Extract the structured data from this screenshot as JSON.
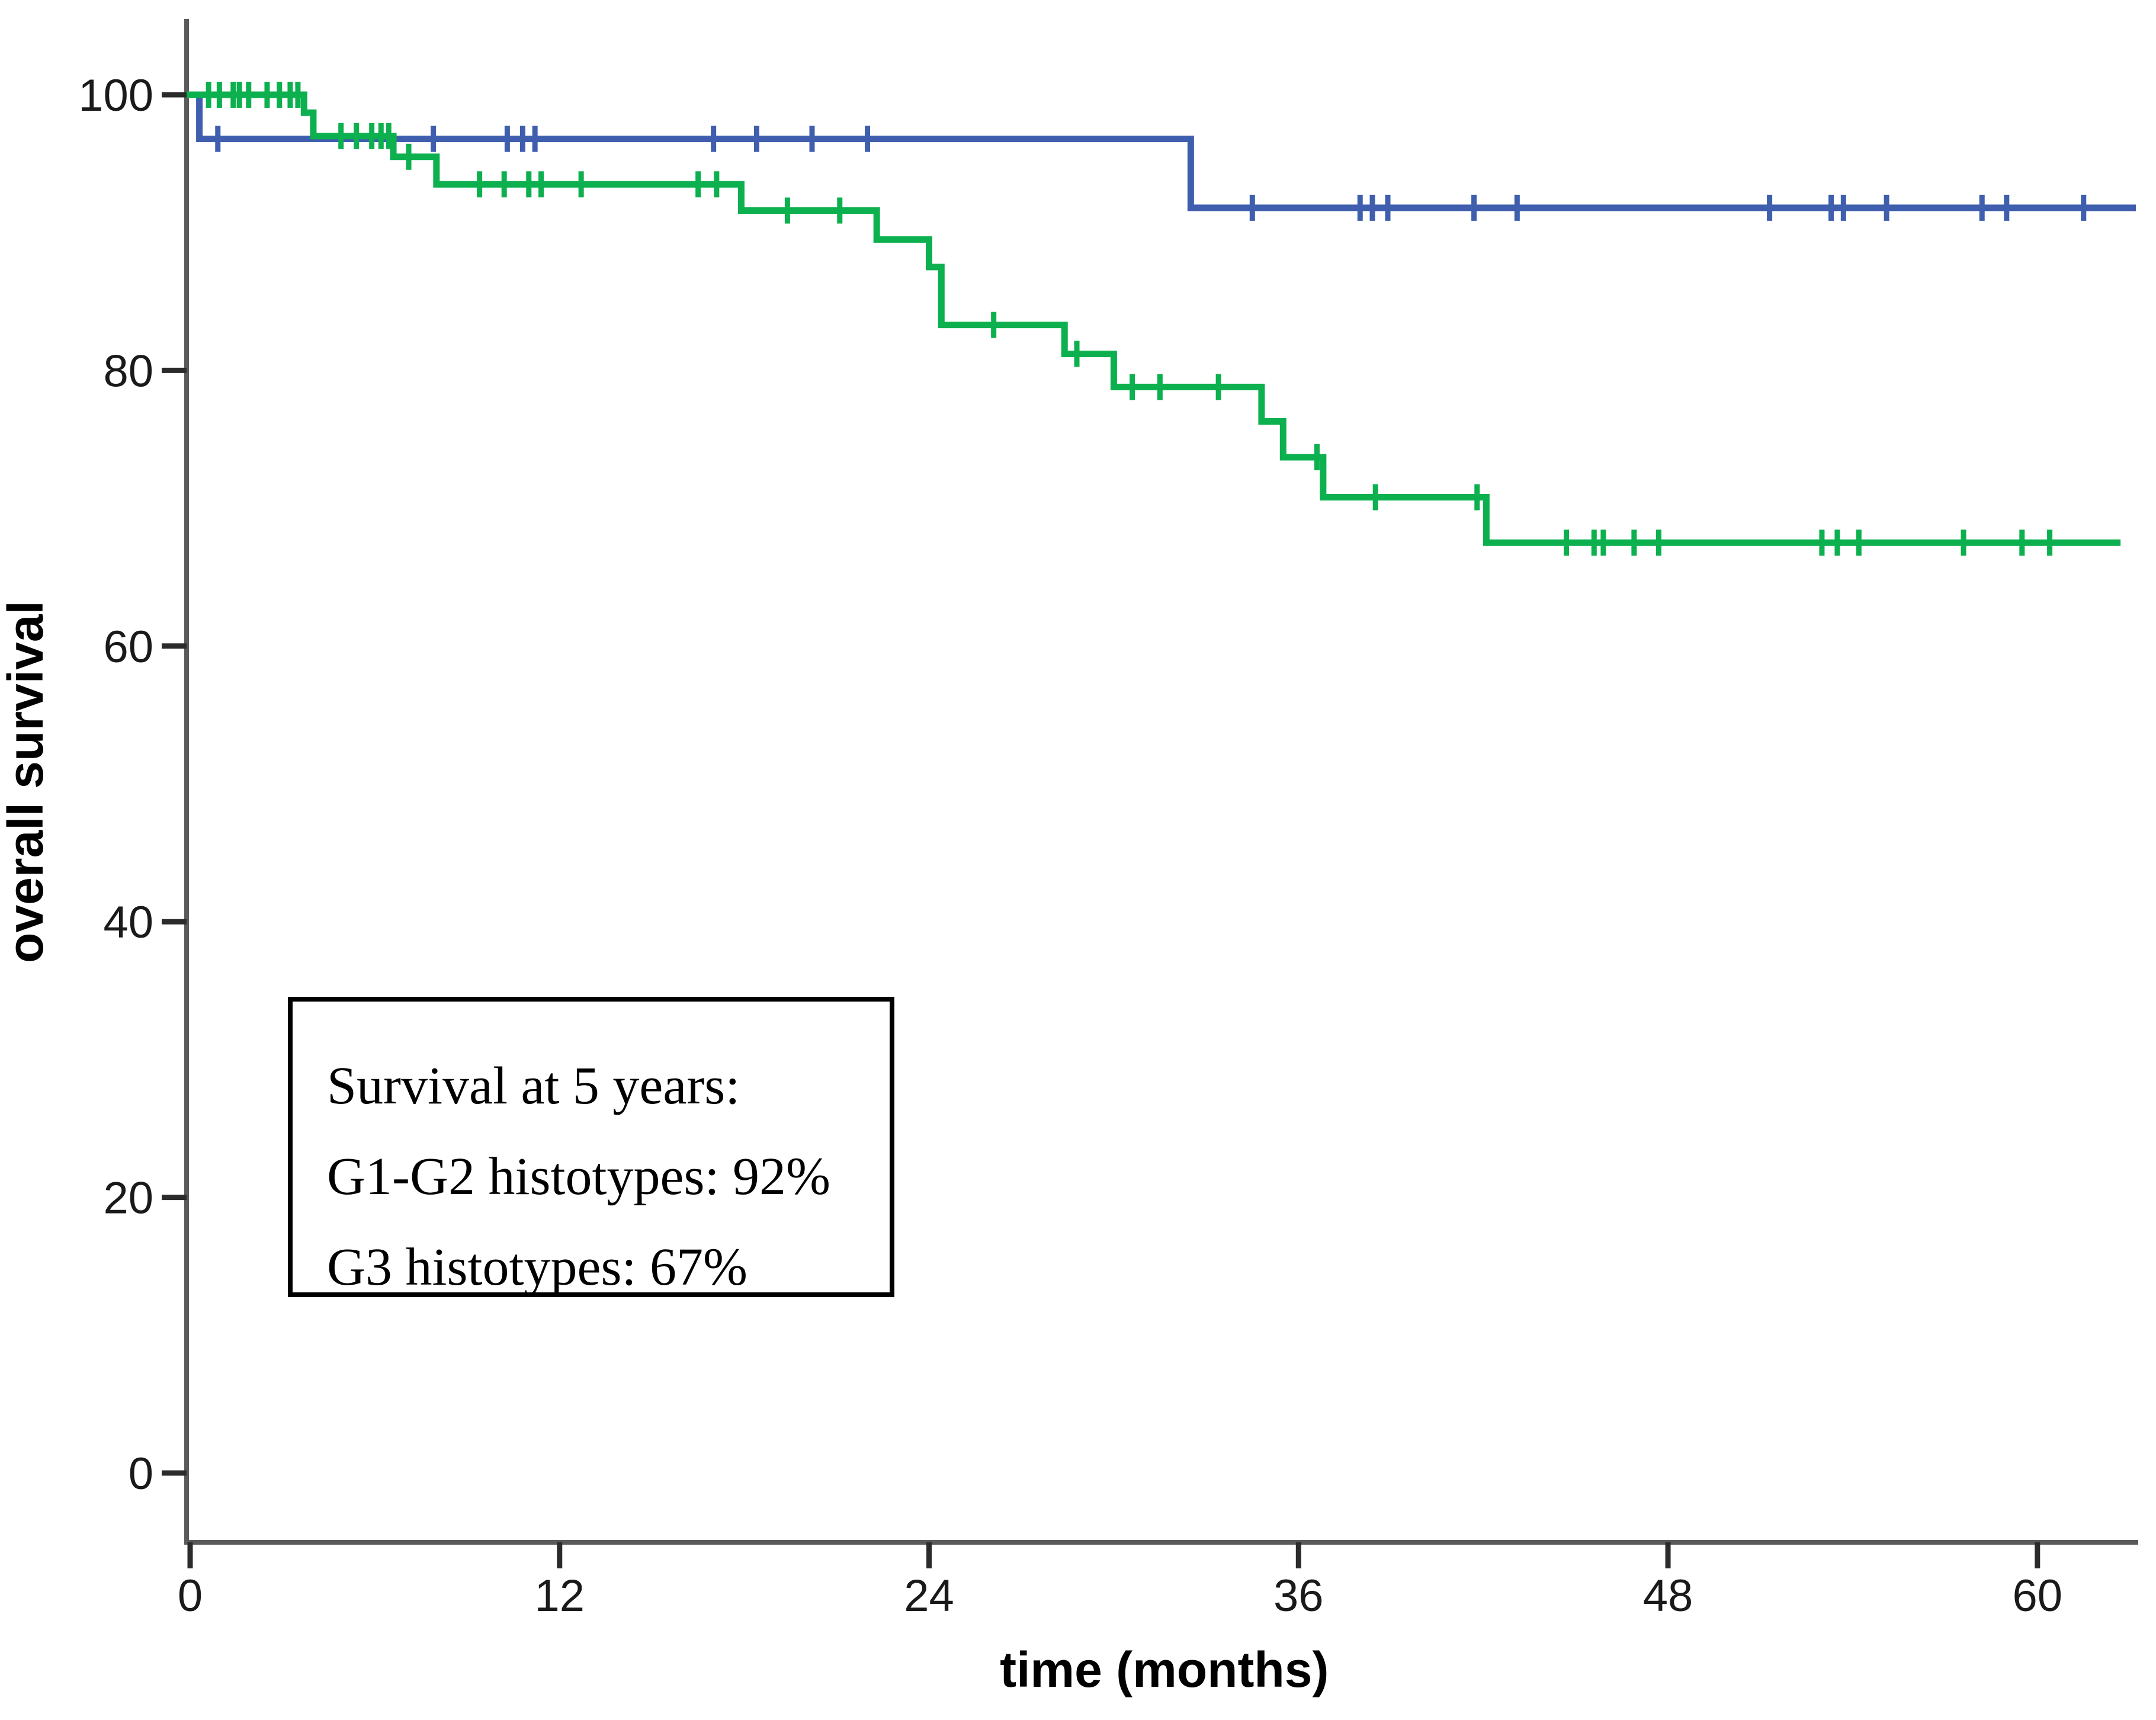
{
  "figure": {
    "background": "#ffffff",
    "axis_color": "#5a5a5a",
    "tick_color": "#2b2b2b",
    "text_color": "#000000"
  },
  "chart_data": {
    "type": "line",
    "subtype": "kaplan-meier-step-curves",
    "title": "",
    "xlabel": "time (months)",
    "ylabel": "overall survival",
    "xlim": [
      0,
      63.4
    ],
    "ylim": [
      0,
      100
    ],
    "xticks": [
      0,
      12,
      24,
      36,
      48,
      60
    ],
    "yticks": [
      0,
      20,
      40,
      60,
      80,
      100
    ],
    "grid": false,
    "legend_position": "annotation-box-inside-plot",
    "series": [
      {
        "name": "G1-G2 histotypes",
        "color": "#3F5EAE",
        "survival_at_5_years": "92%",
        "steps": [
          [
            0,
            100
          ],
          [
            0.3,
            96.8
          ],
          [
            32.5,
            91.8
          ]
        ],
        "end_x": 63.2,
        "censors": [
          [
            0.9,
            96.8
          ],
          [
            7.9,
            96.8
          ],
          [
            10.3,
            96.8
          ],
          [
            10.8,
            96.8
          ],
          [
            11.2,
            96.8
          ],
          [
            17.0,
            96.8
          ],
          [
            18.4,
            96.8
          ],
          [
            20.2,
            96.8
          ],
          [
            22.0,
            96.8
          ],
          [
            34.5,
            91.8
          ],
          [
            38.0,
            91.8
          ],
          [
            38.4,
            91.8
          ],
          [
            38.9,
            91.8
          ],
          [
            41.7,
            91.8
          ],
          [
            43.1,
            91.8
          ],
          [
            51.3,
            91.8
          ],
          [
            53.3,
            91.8
          ],
          [
            53.7,
            91.8
          ],
          [
            55.1,
            91.8
          ],
          [
            58.2,
            91.8
          ],
          [
            59.0,
            91.8
          ],
          [
            61.5,
            91.8
          ]
        ]
      },
      {
        "name": "G3 histotypes",
        "color": "#0CB04E",
        "survival_at_5_years": "67%",
        "steps": [
          [
            0,
            100
          ],
          [
            3.7,
            98.7
          ],
          [
            4.0,
            97.0
          ],
          [
            6.6,
            95.5
          ],
          [
            8.0,
            93.5
          ],
          [
            17.9,
            91.6
          ],
          [
            22.3,
            89.5
          ],
          [
            24.0,
            87.5
          ],
          [
            24.4,
            83.3
          ],
          [
            28.4,
            81.2
          ],
          [
            30.0,
            78.8
          ],
          [
            34.8,
            76.3
          ],
          [
            35.5,
            73.7
          ],
          [
            36.8,
            70.8
          ],
          [
            42.1,
            67.5
          ]
        ],
        "end_x": 62.7,
        "censors": [
          [
            0.6,
            100
          ],
          [
            0.95,
            100
          ],
          [
            1.4,
            100
          ],
          [
            1.6,
            100
          ],
          [
            1.9,
            100
          ],
          [
            2.5,
            100
          ],
          [
            2.9,
            100
          ],
          [
            3.25,
            100
          ],
          [
            3.5,
            100
          ],
          [
            4.9,
            97.0
          ],
          [
            5.4,
            97.0
          ],
          [
            5.9,
            97.0
          ],
          [
            6.2,
            97.0
          ],
          [
            6.45,
            97.0
          ],
          [
            7.1,
            95.5
          ],
          [
            9.4,
            93.5
          ],
          [
            10.2,
            93.5
          ],
          [
            11.0,
            93.5
          ],
          [
            11.4,
            93.5
          ],
          [
            12.7,
            93.5
          ],
          [
            16.5,
            93.5
          ],
          [
            17.1,
            93.5
          ],
          [
            19.4,
            91.6
          ],
          [
            21.1,
            91.6
          ],
          [
            26.1,
            83.3
          ],
          [
            28.8,
            81.2
          ],
          [
            30.6,
            78.8
          ],
          [
            31.5,
            78.8
          ],
          [
            33.4,
            78.8
          ],
          [
            36.6,
            73.7
          ],
          [
            38.5,
            70.8
          ],
          [
            41.8,
            70.8
          ],
          [
            44.7,
            67.5
          ],
          [
            45.6,
            67.5
          ],
          [
            45.9,
            67.5
          ],
          [
            46.9,
            67.5
          ],
          [
            47.7,
            67.5
          ],
          [
            53.0,
            67.5
          ],
          [
            53.5,
            67.5
          ],
          [
            54.2,
            67.5
          ],
          [
            57.6,
            67.5
          ],
          [
            59.5,
            67.5
          ],
          [
            60.4,
            67.5
          ]
        ]
      }
    ],
    "annotation_box": {
      "lines": [
        "Survival at 5 years:",
        "G1-G2 histotypes: 92%",
        "G3 histotypes: 67%"
      ]
    }
  }
}
